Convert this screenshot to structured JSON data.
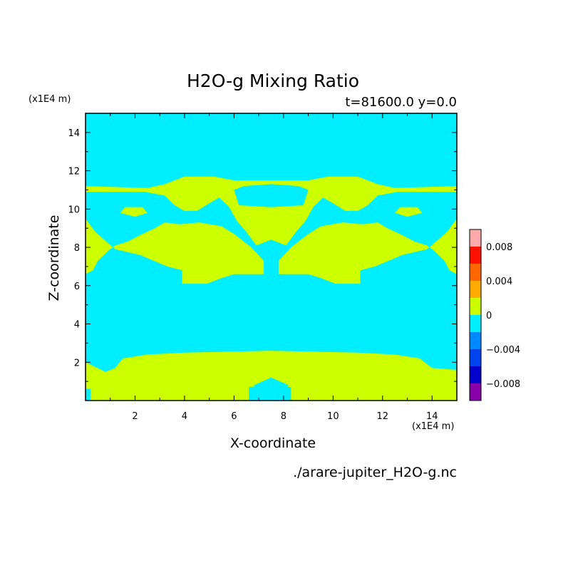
{
  "chart_data": {
    "type": "heatmap",
    "title": "H2O-g Mixing Ratio",
    "subtitle": "t=81600.0 y=0.0",
    "xlabel": "X-coordinate",
    "ylabel": "Z-coordinate",
    "x_unit": "(x1E4 m)",
    "y_unit": "(x1E4 m)",
    "xlim": [
      0,
      15
    ],
    "ylim": [
      0,
      15
    ],
    "x_ticks": [
      "2",
      "4",
      "6",
      "8",
      "10",
      "12",
      "14"
    ],
    "y_ticks": [
      "2",
      "4",
      "6",
      "8",
      "10",
      "12",
      "14"
    ],
    "grid": false,
    "colorbar": {
      "levels": [
        {
          "range": [
            -0.01,
            -0.008
          ],
          "color": "#8800aa"
        },
        {
          "range": [
            -0.008,
            -0.006
          ],
          "color": "#0000cc"
        },
        {
          "range": [
            -0.006,
            -0.004
          ],
          "color": "#0044ee"
        },
        {
          "range": [
            -0.004,
            -0.002
          ],
          "color": "#0088ff"
        },
        {
          "range": [
            -0.002,
            0.0
          ],
          "color": "#00eeff"
        },
        {
          "range": [
            0.0,
            0.002
          ],
          "color": "#ccff00"
        },
        {
          "range": [
            0.002,
            0.004
          ],
          "color": "#ffaa00"
        },
        {
          "range": [
            0.004,
            0.006
          ],
          "color": "#ff6600"
        },
        {
          "range": [
            0.006,
            0.008
          ],
          "color": "#ff1100"
        },
        {
          "range": [
            0.008,
            0.01
          ],
          "color": "#ffaaaa"
        }
      ],
      "tick_labels": [
        {
          "value": 0.008,
          "label": "0.008"
        },
        {
          "value": 0.004,
          "label": "0.004"
        },
        {
          "value": 0,
          "label": "0"
        },
        {
          "value": -0.004,
          "label": "−0.004"
        },
        {
          "value": -0.008,
          "label": "−0.008"
        }
      ]
    },
    "field": {
      "background_color": "#00eeff",
      "region_color": "#ccff00",
      "background_value_range": [
        -0.002,
        0.0
      ],
      "region_value_range": [
        0.0,
        0.002
      ],
      "regions": [
        {
          "name": "lower-band",
          "polygon": [
            [
              0,
              0
            ],
            [
              0,
              2.0
            ],
            [
              0.8,
              1.5
            ],
            [
              1.2,
              1.7
            ],
            [
              1.5,
              2.2
            ],
            [
              2.5,
              2.4
            ],
            [
              4,
              2.5
            ],
            [
              7.5,
              2.6
            ],
            [
              11,
              2.5
            ],
            [
              12.5,
              2.4
            ],
            [
              13.5,
              2.2
            ],
            [
              14,
              1.7
            ],
            [
              15,
              1.6
            ],
            [
              15,
              0
            ],
            [
              8.3,
              0
            ],
            [
              8.3,
              0.7
            ],
            [
              7.3,
              0.8
            ],
            [
              6.6,
              0.7
            ],
            [
              6.6,
              0
            ],
            [
              0.2,
              0
            ],
            [
              0.2,
              0.6
            ],
            [
              0,
              0.6
            ]
          ]
        },
        {
          "name": "middle-left",
          "polygon": [
            [
              0,
              6.6
            ],
            [
              0,
              9.5
            ],
            [
              0.4,
              8.8
            ],
            [
              1.2,
              7.9
            ],
            [
              2.2,
              7.6
            ],
            [
              3.3,
              7.0
            ],
            [
              3.9,
              6.8
            ],
            [
              3.9,
              6.1
            ],
            [
              4.9,
              6.1
            ],
            [
              5.5,
              6.4
            ],
            [
              6.0,
              6.6
            ],
            [
              7.2,
              6.6
            ],
            [
              7.2,
              7.3
            ],
            [
              6.7,
              8.0
            ],
            [
              6.0,
              8.7
            ],
            [
              5.5,
              9.1
            ],
            [
              4.6,
              9.3
            ],
            [
              3.8,
              9.2
            ],
            [
              3.2,
              9.3
            ],
            [
              2.8,
              9.0
            ],
            [
              2.3,
              8.7
            ],
            [
              1.7,
              8.3
            ],
            [
              1.2,
              8.1
            ],
            [
              0.9,
              7.8
            ],
            [
              0.5,
              7.3
            ],
            [
              0.3,
              6.8
            ]
          ]
        },
        {
          "name": "middle-right",
          "polygon": [
            [
              15,
              6.6
            ],
            [
              15,
              9.5
            ],
            [
              14.6,
              8.8
            ],
            [
              13.8,
              7.9
            ],
            [
              12.8,
              7.6
            ],
            [
              11.7,
              7.0
            ],
            [
              11.1,
              6.8
            ],
            [
              11.1,
              6.1
            ],
            [
              10.1,
              6.1
            ],
            [
              9.5,
              6.4
            ],
            [
              9.0,
              6.6
            ],
            [
              7.8,
              6.6
            ],
            [
              7.8,
              7.3
            ],
            [
              8.3,
              8.0
            ],
            [
              9.0,
              8.7
            ],
            [
              9.5,
              9.1
            ],
            [
              10.4,
              9.3
            ],
            [
              11.2,
              9.2
            ],
            [
              11.8,
              9.3
            ],
            [
              12.2,
              9.0
            ],
            [
              12.7,
              8.7
            ],
            [
              13.3,
              8.3
            ],
            [
              13.8,
              8.1
            ],
            [
              14.1,
              7.8
            ],
            [
              14.5,
              7.3
            ],
            [
              14.7,
              6.8
            ]
          ]
        },
        {
          "name": "upper-wing",
          "polygon": [
            [
              0,
              11.2
            ],
            [
              2.5,
              11.1
            ],
            [
              3.2,
              11.3
            ],
            [
              4.0,
              11.7
            ],
            [
              5.2,
              11.7
            ],
            [
              6.0,
              11.5
            ],
            [
              7.5,
              11.5
            ],
            [
              9.0,
              11.5
            ],
            [
              9.8,
              11.7
            ],
            [
              11.0,
              11.7
            ],
            [
              11.8,
              11.3
            ],
            [
              12.5,
              11.1
            ],
            [
              15,
              11.2
            ],
            [
              15,
              10.9
            ],
            [
              12.6,
              10.9
            ],
            [
              11.8,
              10.7
            ],
            [
              11.4,
              10.2
            ],
            [
              11.0,
              9.9
            ],
            [
              10.5,
              9.9
            ],
            [
              10.0,
              10.3
            ],
            [
              9.6,
              10.6
            ],
            [
              9.2,
              10.1
            ],
            [
              8.9,
              9.4
            ],
            [
              8.5,
              8.8
            ],
            [
              8.1,
              8.1
            ],
            [
              7.5,
              8.4
            ],
            [
              6.9,
              8.1
            ],
            [
              6.5,
              8.8
            ],
            [
              6.1,
              9.4
            ],
            [
              5.8,
              10.1
            ],
            [
              5.4,
              10.6
            ],
            [
              5.0,
              10.3
            ],
            [
              4.5,
              9.9
            ],
            [
              4.0,
              9.9
            ],
            [
              3.6,
              10.2
            ],
            [
              3.2,
              10.7
            ],
            [
              2.4,
              10.9
            ],
            [
              0,
              10.9
            ]
          ]
        }
      ],
      "holes": [
        {
          "name": "top-center-hole",
          "polygon": [
            [
              6.0,
              11.0
            ],
            [
              6.2,
              10.2
            ],
            [
              7.5,
              10.1
            ],
            [
              8.8,
              10.2
            ],
            [
              9.0,
              11.0
            ],
            [
              8.6,
              11.2
            ],
            [
              7.5,
              11.3
            ],
            [
              6.4,
              11.2
            ]
          ]
        },
        {
          "name": "bottom-center-hole",
          "polygon": [
            [
              6.8,
              0.8
            ],
            [
              7.0,
              0.3
            ],
            [
              7.5,
              0.2
            ],
            [
              8.0,
              0.3
            ],
            [
              8.2,
              0.8
            ],
            [
              7.5,
              1.2
            ]
          ]
        }
      ],
      "islands": [
        {
          "name": "left-island",
          "polygon": [
            [
              1.4,
              9.8
            ],
            [
              1.6,
              10.1
            ],
            [
              2.3,
              10.1
            ],
            [
              2.5,
              9.8
            ],
            [
              2.0,
              9.6
            ]
          ]
        },
        {
          "name": "right-island",
          "polygon": [
            [
              12.5,
              9.8
            ],
            [
              12.7,
              10.1
            ],
            [
              13.4,
              10.1
            ],
            [
              13.6,
              9.8
            ],
            [
              13.0,
              9.6
            ]
          ]
        }
      ]
    }
  },
  "file_label": "./arare-jupiter_H2O-g.nc"
}
